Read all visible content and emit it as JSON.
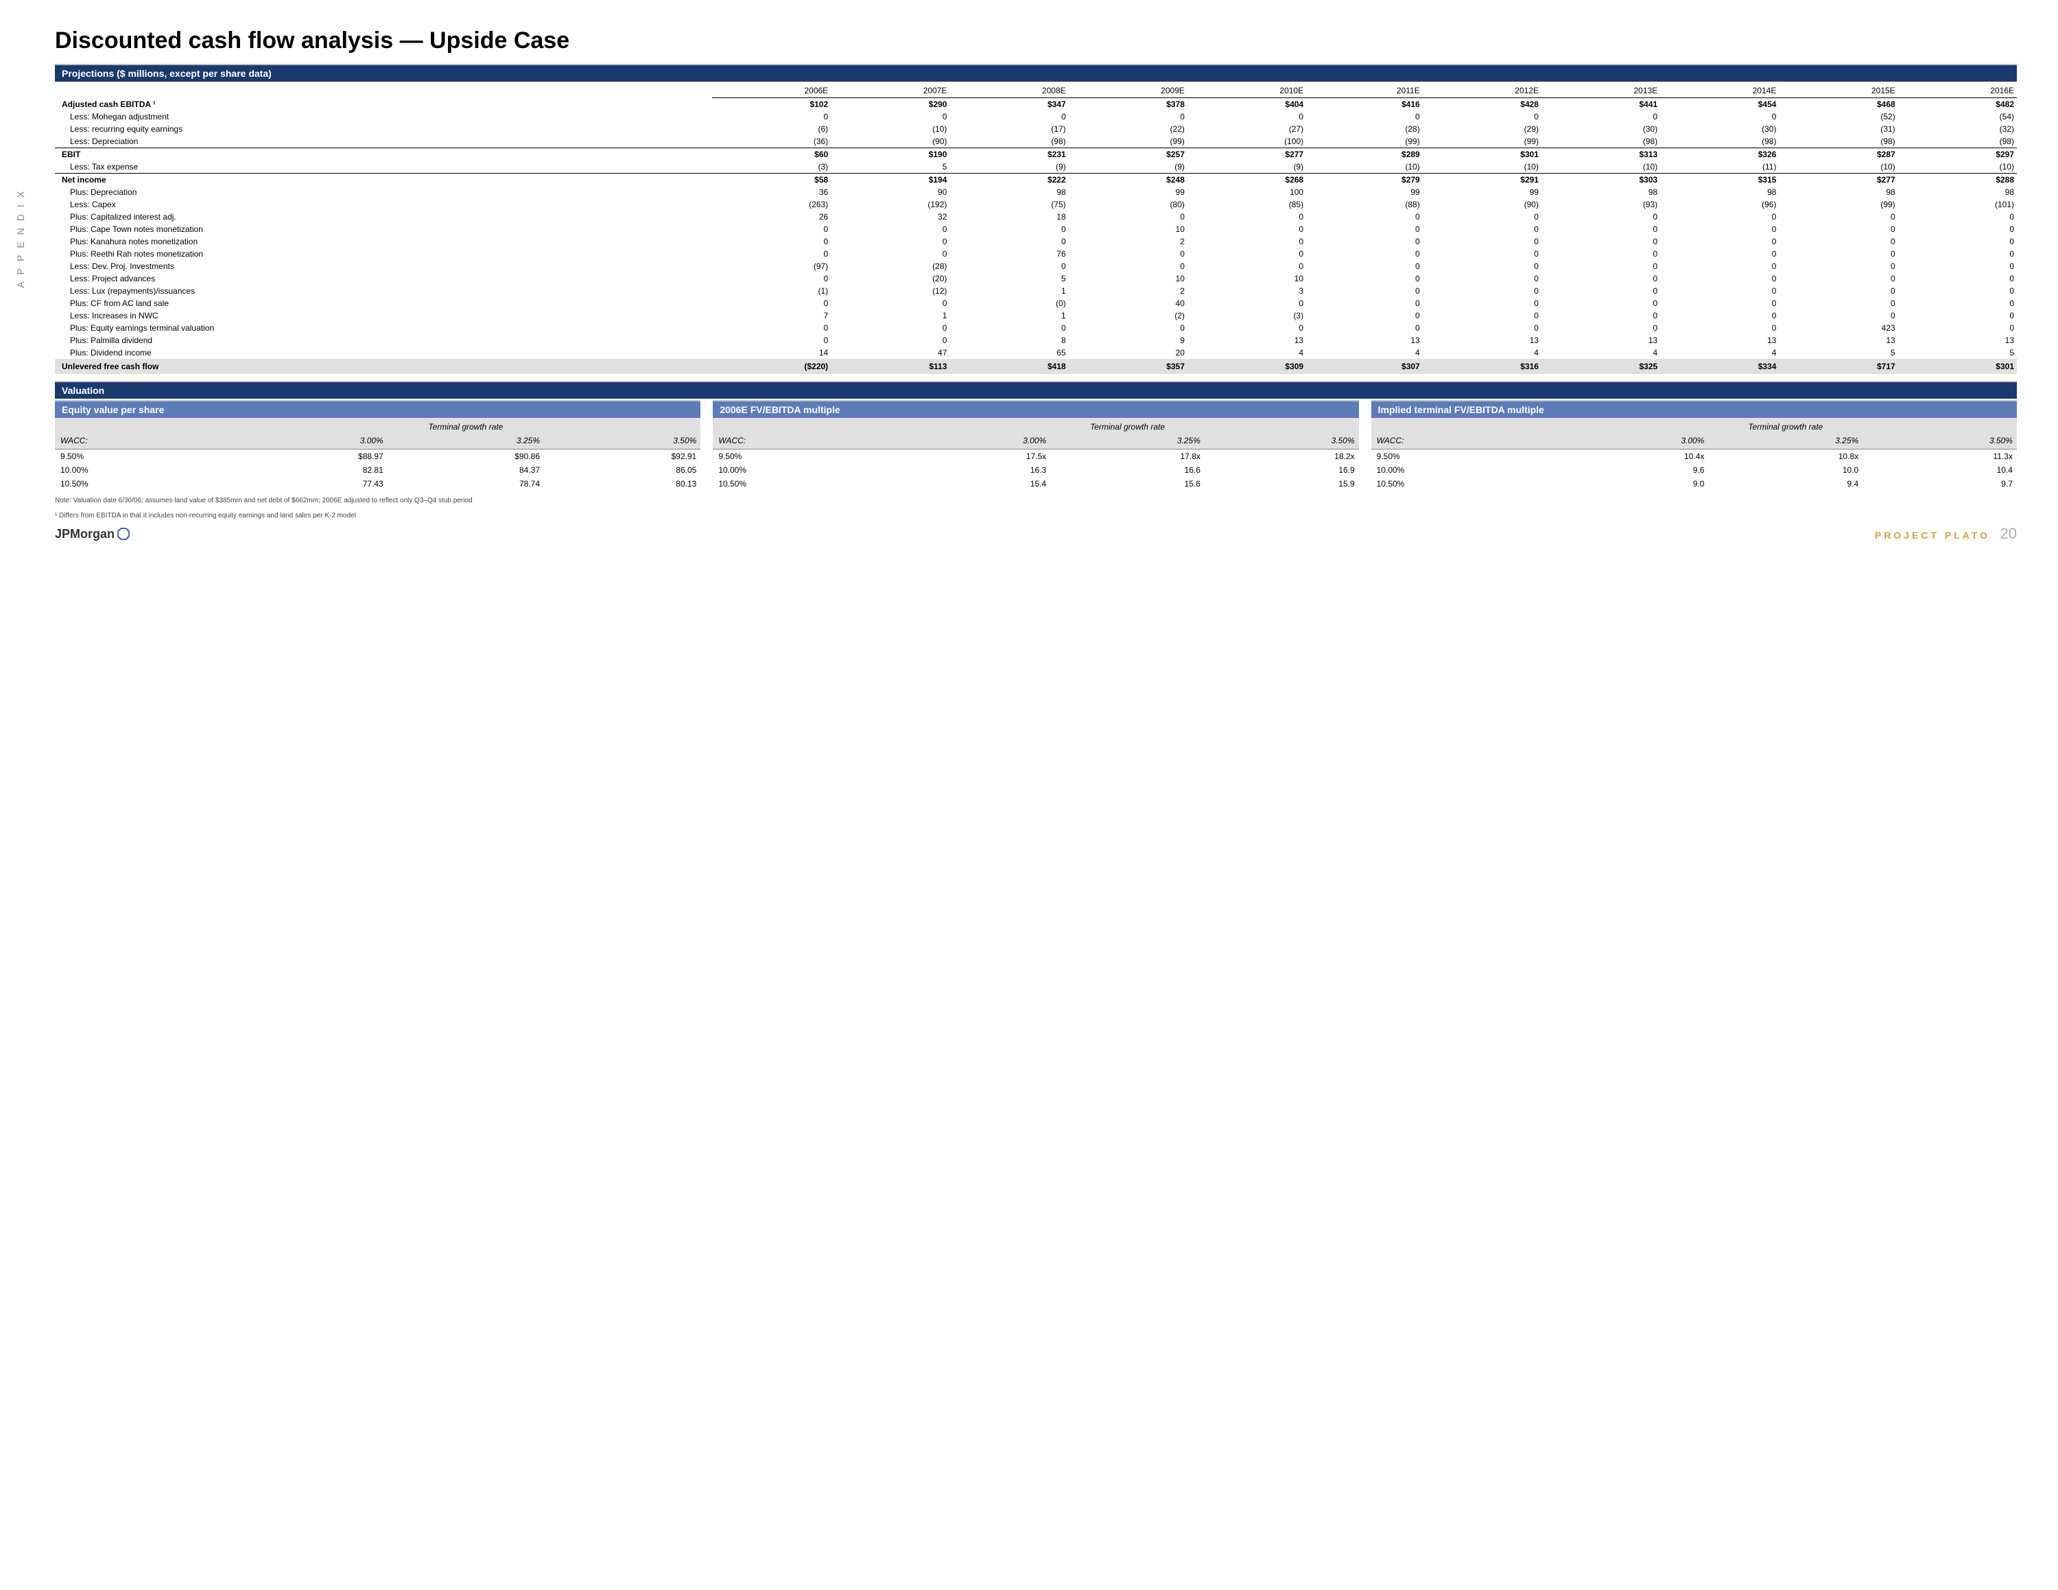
{
  "title": "Discounted cash flow analysis — Upside Case",
  "side_label": "APPENDIX",
  "proj_header": "Projections ($ millions, except per share data)",
  "years": [
    "2006E",
    "2007E",
    "2008E",
    "2009E",
    "2010E",
    "2011E",
    "2012E",
    "2013E",
    "2014E",
    "2015E",
    "2016E"
  ],
  "rows": [
    {
      "l": "Adjusted cash EBITDA ¹",
      "b": true,
      "v": [
        "$102",
        "$290",
        "$347",
        "$378",
        "$404",
        "$416",
        "$428",
        "$441",
        "$454",
        "$468",
        "$482"
      ]
    },
    {
      "l": "Less: Mohegan adjustment",
      "i": true,
      "v": [
        "0",
        "0",
        "0",
        "0",
        "0",
        "0",
        "0",
        "0",
        "0",
        "(52)",
        "(54)"
      ]
    },
    {
      "l": "Less: recurring equity earnings",
      "i": true,
      "v": [
        "(6)",
        "(10)",
        "(17)",
        "(22)",
        "(27)",
        "(28)",
        "(29)",
        "(30)",
        "(30)",
        "(31)",
        "(32)"
      ]
    },
    {
      "l": "Less: Depreciation",
      "i": true,
      "v": [
        "(36)",
        "(90)",
        "(98)",
        "(99)",
        "(100)",
        "(99)",
        "(99)",
        "(98)",
        "(98)",
        "(98)",
        "(98)"
      ]
    },
    {
      "l": "EBIT",
      "b": true,
      "la": true,
      "v": [
        "$60",
        "$190",
        "$231",
        "$257",
        "$277",
        "$289",
        "$301",
        "$313",
        "$326",
        "$287",
        "$297"
      ]
    },
    {
      "l": "Less: Tax expense",
      "i": true,
      "v": [
        "(3)",
        "5",
        "(9)",
        "(9)",
        "(9)",
        "(10)",
        "(10)",
        "(10)",
        "(11)",
        "(10)",
        "(10)"
      ]
    },
    {
      "l": "Net income",
      "b": true,
      "la": true,
      "v": [
        "$58",
        "$194",
        "$222",
        "$248",
        "$268",
        "$279",
        "$291",
        "$303",
        "$315",
        "$277",
        "$288"
      ]
    },
    {
      "l": "Plus: Depreciation",
      "i": true,
      "v": [
        "36",
        "90",
        "98",
        "99",
        "100",
        "99",
        "99",
        "98",
        "98",
        "98",
        "98"
      ]
    },
    {
      "l": "Less: Capex",
      "i": true,
      "v": [
        "(263)",
        "(192)",
        "(75)",
        "(80)",
        "(85)",
        "(88)",
        "(90)",
        "(93)",
        "(96)",
        "(99)",
        "(101)"
      ]
    },
    {
      "l": "Plus: Capitalized interest adj.",
      "i": true,
      "v": [
        "26",
        "32",
        "18",
        "0",
        "0",
        "0",
        "0",
        "0",
        "0",
        "0",
        "0"
      ]
    },
    {
      "l": "Plus: Cape Town notes monetization",
      "i": true,
      "v": [
        "0",
        "0",
        "0",
        "10",
        "0",
        "0",
        "0",
        "0",
        "0",
        "0",
        "0"
      ]
    },
    {
      "l": "Plus: Kanahura notes monetization",
      "i": true,
      "v": [
        "0",
        "0",
        "0",
        "2",
        "0",
        "0",
        "0",
        "0",
        "0",
        "0",
        "0"
      ]
    },
    {
      "l": "Plus: Reethi Rah notes monetization",
      "i": true,
      "v": [
        "0",
        "0",
        "76",
        "0",
        "0",
        "0",
        "0",
        "0",
        "0",
        "0",
        "0"
      ]
    },
    {
      "l": "Less: Dev. Proj. Investments",
      "i": true,
      "v": [
        "(97)",
        "(28)",
        "0",
        "0",
        "0",
        "0",
        "0",
        "0",
        "0",
        "0",
        "0"
      ]
    },
    {
      "l": "Less: Project advances",
      "i": true,
      "v": [
        "0",
        "(20)",
        "5",
        "10",
        "10",
        "0",
        "0",
        "0",
        "0",
        "0",
        "0"
      ]
    },
    {
      "l": "Less: Lux (repayments)/issuances",
      "i": true,
      "v": [
        "(1)",
        "(12)",
        "1",
        "2",
        "3",
        "0",
        "0",
        "0",
        "0",
        "0",
        "0"
      ]
    },
    {
      "l": "Plus: CF from AC land sale",
      "i": true,
      "v": [
        "0",
        "0",
        "(0)",
        "40",
        "0",
        "0",
        "0",
        "0",
        "0",
        "0",
        "0"
      ]
    },
    {
      "l": "Less: Increases in NWC",
      "i": true,
      "v": [
        "7",
        "1",
        "1",
        "(2)",
        "(3)",
        "0",
        "0",
        "0",
        "0",
        "0",
        "0"
      ]
    },
    {
      "l": "Plus: Equity earnings terminal valuation",
      "i": true,
      "v": [
        "0",
        "0",
        "0",
        "0",
        "0",
        "0",
        "0",
        "0",
        "0",
        "423",
        "0"
      ]
    },
    {
      "l": "Plus: Palmilla dividend",
      "i": true,
      "v": [
        "0",
        "0",
        "8",
        "9",
        "13",
        "13",
        "13",
        "13",
        "13",
        "13",
        "13"
      ]
    },
    {
      "l": "Plus: Dividend income",
      "i": true,
      "v": [
        "14",
        "47",
        "65",
        "20",
        "4",
        "4",
        "4",
        "4",
        "4",
        "5",
        "5"
      ]
    }
  ],
  "ufcf": {
    "l": "Unlevered free cash flow",
    "v": [
      "($220)",
      "$113",
      "$418",
      "$357",
      "$309",
      "$307",
      "$316",
      "$325",
      "$334",
      "$717",
      "$301"
    ]
  },
  "valuation_header": "Valuation",
  "tgr_label": "Terminal growth rate",
  "wacc_label": "WACC:",
  "tables": [
    {
      "title": "Equity value per share",
      "cols": [
        "3.00%",
        "3.25%",
        "3.50%"
      ],
      "rows": [
        [
          "9.50%",
          "$88.97",
          "$90.86",
          "$92.91"
        ],
        [
          "10.00%",
          "82.81",
          "84.37",
          "86.05"
        ],
        [
          "10.50%",
          "77.43",
          "78.74",
          "80.13"
        ]
      ]
    },
    {
      "title": "2006E FV/EBITDA multiple",
      "cols": [
        "3.00%",
        "3.25%",
        "3.50%"
      ],
      "rows": [
        [
          "9.50%",
          "17.5x",
          "17.8x",
          "18.2x"
        ],
        [
          "10.00%",
          "16.3",
          "16.6",
          "16.9"
        ],
        [
          "10.50%",
          "15.4",
          "15.6",
          "15.9"
        ]
      ]
    },
    {
      "title": "Implied terminal FV/EBITDA multiple",
      "cols": [
        "3.00%",
        "3.25%",
        "3.50%"
      ],
      "rows": [
        [
          "9.50%",
          "10.4x",
          "10.8x",
          "11.3x"
        ],
        [
          "10.00%",
          "9.6",
          "10.0",
          "10.4"
        ],
        [
          "10.50%",
          "9.0",
          "9.4",
          "9.7"
        ]
      ]
    }
  ],
  "note1": "Note: Valuation date 6/30/06; assumes land value of $385mm and net debt of $662mm; 2006E adjusted to reflect only Q3–Q4 stub period",
  "note2": "¹ Differs from EBITDA in that it includes non-recurring equity earnings and land sales per K-2 model",
  "logo": "JPMorgan",
  "project": "PROJECT PLATO",
  "page": "20"
}
